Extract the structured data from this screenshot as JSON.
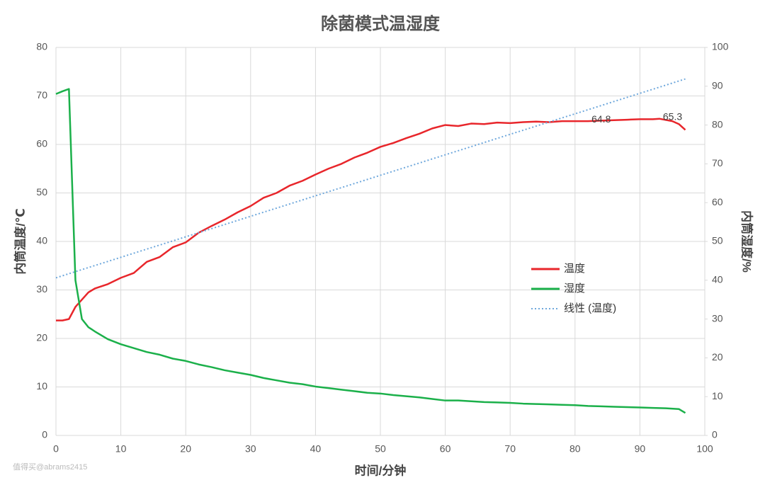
{
  "chart_data": {
    "type": "line",
    "title": "除菌模式温湿度",
    "xlabel": "时间/分钟",
    "ylabel": "内筒温度/℃",
    "y2label": "内筒湿度/%",
    "watermark": "值得买@abrams2415",
    "xlim": [
      0,
      100
    ],
    "xticks": [
      0,
      10,
      20,
      30,
      40,
      50,
      60,
      70,
      80,
      90,
      100
    ],
    "ylim": [
      0,
      80
    ],
    "yticks": [
      0,
      10,
      20,
      30,
      40,
      50,
      60,
      70,
      80
    ],
    "y2lim": [
      0,
      100
    ],
    "y2ticks": [
      0,
      10,
      20,
      30,
      40,
      50,
      60,
      70,
      80,
      90,
      100
    ],
    "grid": true,
    "series": [
      {
        "name": "温度",
        "color": "#e8262b",
        "style": "solid",
        "x": [
          0,
          1,
          2,
          3,
          4,
          5,
          6,
          8,
          10,
          12,
          14,
          16,
          18,
          20,
          22,
          24,
          26,
          28,
          30,
          32,
          34,
          36,
          38,
          40,
          42,
          44,
          46,
          48,
          50,
          52,
          54,
          56,
          58,
          60,
          62,
          64,
          66,
          68,
          70,
          72,
          74,
          76,
          78,
          80,
          82,
          84,
          86,
          88,
          90,
          92,
          93,
          95,
          96,
          97
        ],
        "values": [
          23.7,
          23.7,
          24,
          26.5,
          28,
          29.5,
          30.3,
          31.2,
          32.5,
          33.5,
          35.8,
          36.8,
          38.8,
          39.8,
          41.8,
          43.2,
          44.5,
          46,
          47.3,
          49,
          50,
          51.5,
          52.5,
          53.8,
          55,
          56,
          57.3,
          58.3,
          59.5,
          60.3,
          61.3,
          62.2,
          63.3,
          64,
          63.8,
          64.3,
          64.2,
          64.5,
          64.4,
          64.6,
          64.7,
          64.6,
          64.8,
          64.8,
          64.8,
          64.9,
          65,
          65.1,
          65.2,
          65.2,
          65.3,
          64.8,
          64.2,
          63
        ]
      },
      {
        "name": "湿度",
        "color": "#1bb04a",
        "style": "solid",
        "axis": "y2",
        "x": [
          0,
          1,
          2,
          3,
          4,
          5,
          6,
          8,
          10,
          12,
          14,
          16,
          18,
          20,
          22,
          24,
          26,
          28,
          30,
          32,
          34,
          36,
          38,
          40,
          42,
          44,
          46,
          48,
          50,
          52,
          54,
          56,
          58,
          60,
          62,
          64,
          66,
          68,
          70,
          72,
          74,
          76,
          78,
          80,
          82,
          84,
          86,
          88,
          90,
          92,
          94,
          96,
          97
        ],
        "values": [
          88,
          88.7,
          89.3,
          40,
          30,
          27.9,
          26.8,
          24.8,
          23.5,
          22.5,
          21.5,
          20.8,
          19.8,
          19.2,
          18.3,
          17.6,
          16.8,
          16.2,
          15.6,
          14.8,
          14.2,
          13.6,
          13.2,
          12.6,
          12.2,
          11.8,
          11.4,
          11,
          10.8,
          10.4,
          10.1,
          9.8,
          9.4,
          9,
          9,
          8.8,
          8.6,
          8.5,
          8.4,
          8.2,
          8.1,
          8,
          7.9,
          7.8,
          7.6,
          7.5,
          7.4,
          7.3,
          7.2,
          7.1,
          7,
          6.8,
          5.8
        ]
      },
      {
        "name": "线性 (温度)",
        "color": "#6fa8dc",
        "style": "dotted",
        "x": [
          0,
          97
        ],
        "values": [
          32.5,
          73.5
        ]
      }
    ],
    "annotations": [
      {
        "x": 82,
        "value": 64.8
      },
      {
        "x": 93,
        "value": 65.3
      }
    ]
  }
}
